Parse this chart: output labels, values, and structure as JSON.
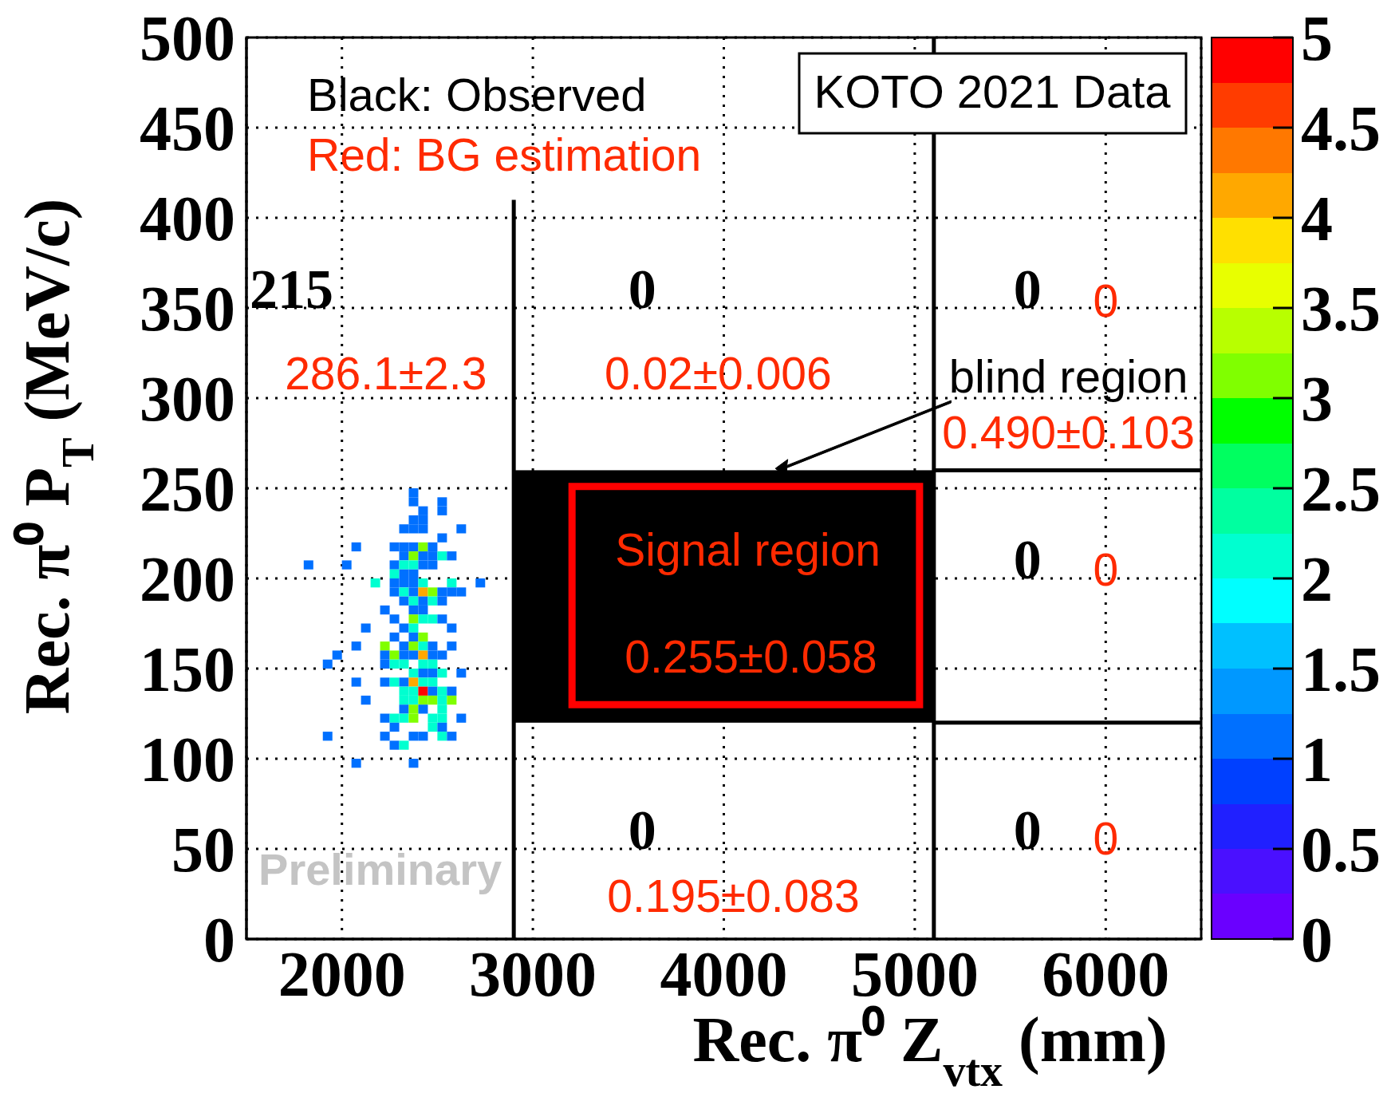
{
  "chart_data": {
    "type": "scatter",
    "marker": "square",
    "xlabel": "Rec.  π⁰ Z$_{vtx}$ (mm)",
    "ylabel": "Rec.  π⁰ P$_{T}$ (MeV/c)",
    "xlim": [
      1500,
      6500
    ],
    "xticks": [
      2000,
      3000,
      4000,
      5000,
      6000
    ],
    "ylim": [
      0,
      500
    ],
    "yticks": [
      0,
      50,
      100,
      150,
      200,
      250,
      300,
      350,
      400,
      450,
      500
    ],
    "grid": true,
    "clim": [
      0,
      5
    ],
    "cticks": [
      0,
      {
        "value": 0.5,
        "label": "0.5"
      },
      1,
      {
        "value": 1.5,
        "label": "1.5"
      },
      2,
      {
        "value": 2.5,
        "label": "2.5"
      },
      3,
      {
        "value": 3.5,
        "label": "3.5"
      },
      4,
      {
        "value": 4.5,
        "label": "4.5"
      },
      5
    ],
    "x": [
      2375,
      2375,
      2525,
      2425,
      2525,
      2375,
      2425,
      2325,
      2375,
      2425,
      2625,
      2525,
      2075,
      2275,
      2325,
      2375,
      2425,
      2475,
      2325,
      2375,
      2425,
      2475,
      2525,
      2575,
      1825,
      2025,
      2275,
      2325,
      2375,
      2425,
      2475,
      2275,
      2325,
      2375,
      2175,
      2275,
      2325,
      2375,
      2425,
      2575,
      2725,
      2275,
      2325,
      2375,
      2425,
      2475,
      2525,
      2575,
      2625,
      2325,
      2375,
      2425,
      2475,
      2525,
      2225,
      2375,
      2425,
      2275,
      2375,
      2425,
      2475,
      2525,
      2125,
      2325,
      2375,
      2575,
      2275,
      2375,
      2425,
      2075,
      2225,
      2325,
      2375,
      2425,
      2475,
      2575,
      1975,
      2225,
      2275,
      2325,
      2375,
      2425,
      2475,
      2525,
      1925,
      2225,
      2275,
      2325,
      2425,
      2475,
      2375,
      2425,
      2475,
      2525,
      2625,
      2075,
      2225,
      2275,
      2325,
      2375,
      2425,
      2475,
      2325,
      2375,
      2425,
      2475,
      2525,
      2575,
      2125,
      2325,
      2375,
      2425,
      2475,
      2525,
      2575,
      2325,
      2375,
      2425,
      2525,
      2225,
      2275,
      2325,
      2375,
      2475,
      2525,
      2625,
      2275,
      2475,
      2525,
      1925,
      2225,
      2375,
      2425,
      2525,
      2575,
      2275,
      2325,
      2075,
      2375
    ],
    "values": [
      247.5,
      242.5,
      242.5,
      237.5,
      237.5,
      232.5,
      232.5,
      227.5,
      227.5,
      227.5,
      227.5,
      222.5,
      217.5,
      217.5,
      217.5,
      217.5,
      217.5,
      217.5,
      212.5,
      212.5,
      212.5,
      212.5,
      212.5,
      212.5,
      207.5,
      207.5,
      207.5,
      207.5,
      207.5,
      207.5,
      207.5,
      202.5,
      202.5,
      202.5,
      197.5,
      197.5,
      197.5,
      197.5,
      197.5,
      197.5,
      197.5,
      192.5,
      192.5,
      192.5,
      192.5,
      192.5,
      192.5,
      192.5,
      192.5,
      187.5,
      187.5,
      187.5,
      187.5,
      187.5,
      182.5,
      182.5,
      182.5,
      177.5,
      177.5,
      177.5,
      177.5,
      177.5,
      172.5,
      172.5,
      172.5,
      172.5,
      167.5,
      167.5,
      167.5,
      162.5,
      162.5,
      162.5,
      162.5,
      162.5,
      162.5,
      162.5,
      157.5,
      157.5,
      157.5,
      157.5,
      157.5,
      157.5,
      157.5,
      157.5,
      152.5,
      152.5,
      152.5,
      152.5,
      152.5,
      152.5,
      147.5,
      147.5,
      147.5,
      147.5,
      147.5,
      142.5,
      142.5,
      142.5,
      142.5,
      142.5,
      142.5,
      142.5,
      137.5,
      137.5,
      137.5,
      137.5,
      137.5,
      137.5,
      132.5,
      132.5,
      132.5,
      132.5,
      132.5,
      132.5,
      132.5,
      127.5,
      127.5,
      127.5,
      127.5,
      122.5,
      122.5,
      122.5,
      122.5,
      122.5,
      122.5,
      122.5,
      117.5,
      117.5,
      117.5,
      112.5,
      112.5,
      112.5,
      112.5,
      112.5,
      112.5,
      107.5,
      107.5,
      97.5,
      97.5
    ],
    "cvalues": [
      1,
      1,
      1,
      1,
      1,
      1,
      1,
      1,
      1,
      1,
      1,
      1,
      1,
      1,
      1,
      1,
      3,
      1,
      1,
      3,
      1,
      1,
      2,
      1,
      1,
      1,
      1,
      2,
      2,
      1,
      1,
      2,
      1,
      1,
      2,
      1,
      1,
      1,
      2,
      2,
      1,
      1,
      2,
      1,
      4,
      3,
      1,
      1,
      1,
      1,
      2,
      1,
      2,
      1,
      1,
      1,
      1,
      1,
      3,
      2,
      2,
      1,
      1,
      1,
      2,
      1,
      1,
      1,
      3,
      1,
      3,
      1,
      3,
      2,
      1,
      1,
      1,
      1,
      3,
      1,
      1,
      4,
      1,
      1,
      1,
      1,
      2,
      2,
      2,
      2,
      2,
      1,
      1,
      2,
      1,
      1,
      1,
      2,
      1,
      4,
      2,
      2,
      2,
      2,
      5,
      1,
      2,
      1,
      1,
      2,
      2,
      3,
      3,
      2,
      3,
      1,
      3,
      1,
      2,
      1,
      2,
      2,
      3,
      2,
      2,
      1,
      1,
      2,
      1,
      1,
      1,
      1,
      1,
      2,
      1,
      1,
      2,
      1,
      1
    ],
    "ref_lines": [
      {
        "axis": "x",
        "value": 2900
      },
      {
        "axis": "x",
        "value": 5100
      },
      {
        "axis": "y",
        "value": 260
      },
      {
        "axis": "y",
        "value": 120
      }
    ],
    "annotations": [
      "Black: Observed",
      "Red: BG estimation",
      "KOTO 2021 Data",
      "Preliminary",
      "215",
      "286.1±2.3",
      "0",
      "0.02±0.006",
      "0",
      "0",
      "blind region",
      "0.490±0.103",
      "Signal region",
      "0.255±0.058",
      "0",
      "0",
      "0",
      "0.195±0.083",
      "0",
      "0"
    ]
  }
}
